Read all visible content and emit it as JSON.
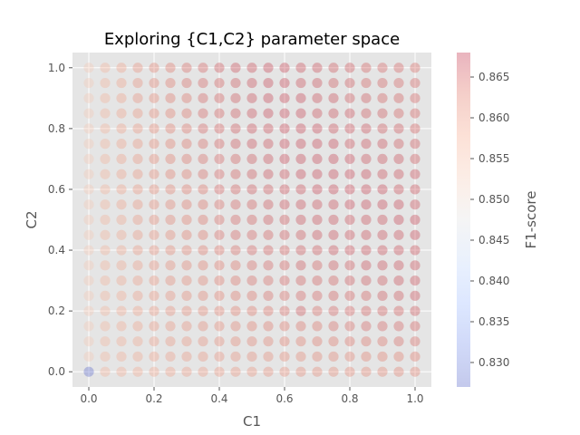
{
  "chart_data": {
    "type": "scatter",
    "title": "Exploring {C1,C2} parameter space",
    "xlabel": "C1",
    "ylabel": "C2",
    "xlim": [
      -0.05,
      1.05
    ],
    "ylim": [
      -0.05,
      1.05
    ],
    "x_ticks": [
      "0.0",
      "0.2",
      "0.4",
      "0.6",
      "0.8",
      "1.0"
    ],
    "y_ticks": [
      "0.0",
      "0.2",
      "0.4",
      "0.6",
      "0.8",
      "1.0"
    ],
    "grid": true,
    "colorbar": {
      "label": "F1-score",
      "range": [
        0.827,
        0.868
      ],
      "ticks": [
        "0.830",
        "0.835",
        "0.840",
        "0.845",
        "0.850",
        "0.855",
        "0.860",
        "0.865"
      ],
      "colormap": "coolwarm",
      "alpha": 0.3
    },
    "grid_values": {
      "c1": [
        0.0,
        0.05,
        0.1,
        0.15,
        0.2,
        0.25,
        0.3,
        0.35,
        0.4,
        0.45,
        0.5,
        0.55,
        0.6,
        0.65,
        0.7,
        0.75,
        0.8,
        0.85,
        0.9,
        0.95,
        1.0
      ],
      "c2": [
        0.0,
        0.05,
        0.1,
        0.15,
        0.2,
        0.25,
        0.3,
        0.35,
        0.4,
        0.45,
        0.5,
        0.55,
        0.6,
        0.65,
        0.7,
        0.75,
        0.8,
        0.85,
        0.9,
        0.95,
        1.0
      ]
    },
    "f1_score_rows_note": "rows indexed by C2 (0.0 to 1.0), columns by C1 (0.0 to 1.0)",
    "f1_score": [
      [
        0.8275,
        0.8565,
        0.857,
        0.8575,
        0.858,
        0.8585,
        0.859,
        0.859,
        0.8595,
        0.86,
        0.86,
        0.8605,
        0.8605,
        0.861,
        0.861,
        0.861,
        0.8615,
        0.8615,
        0.8615,
        0.862,
        0.862
      ],
      [
        0.853,
        0.856,
        0.857,
        0.858,
        0.8585,
        0.859,
        0.8595,
        0.86,
        0.8605,
        0.8605,
        0.861,
        0.861,
        0.8615,
        0.8615,
        0.862,
        0.862,
        0.862,
        0.8625,
        0.8625,
        0.8625,
        0.863
      ],
      [
        0.853,
        0.856,
        0.857,
        0.858,
        0.859,
        0.8595,
        0.86,
        0.8605,
        0.861,
        0.8615,
        0.862,
        0.862,
        0.8625,
        0.8625,
        0.863,
        0.863,
        0.8635,
        0.8635,
        0.8635,
        0.864,
        0.864
      ],
      [
        0.853,
        0.856,
        0.8575,
        0.8585,
        0.8595,
        0.86,
        0.8605,
        0.861,
        0.8615,
        0.862,
        0.8625,
        0.863,
        0.863,
        0.8635,
        0.8635,
        0.864,
        0.864,
        0.8645,
        0.8645,
        0.8645,
        0.865
      ],
      [
        0.853,
        0.856,
        0.8575,
        0.8585,
        0.8595,
        0.8605,
        0.861,
        0.8615,
        0.862,
        0.8625,
        0.863,
        0.8635,
        0.864,
        0.8655,
        0.864,
        0.8645,
        0.8645,
        0.865,
        0.865,
        0.865,
        0.8655
      ],
      [
        0.853,
        0.8565,
        0.8575,
        0.859,
        0.86,
        0.8605,
        0.8615,
        0.862,
        0.8625,
        0.863,
        0.8635,
        0.864,
        0.864,
        0.8645,
        0.8645,
        0.865,
        0.865,
        0.865,
        0.8655,
        0.8655,
        0.866
      ],
      [
        0.853,
        0.8565,
        0.858,
        0.859,
        0.86,
        0.861,
        0.8615,
        0.862,
        0.863,
        0.8635,
        0.864,
        0.864,
        0.8645,
        0.865,
        0.865,
        0.865,
        0.8655,
        0.8655,
        0.8655,
        0.866,
        0.866
      ],
      [
        0.853,
        0.8565,
        0.858,
        0.859,
        0.8605,
        0.861,
        0.862,
        0.8625,
        0.863,
        0.8635,
        0.864,
        0.8645,
        0.865,
        0.8655,
        0.865,
        0.8655,
        0.8655,
        0.866,
        0.866,
        0.866,
        0.866
      ],
      [
        0.853,
        0.8565,
        0.858,
        0.8595,
        0.8605,
        0.8615,
        0.862,
        0.863,
        0.8635,
        0.864,
        0.8645,
        0.865,
        0.865,
        0.8655,
        0.8655,
        0.866,
        0.866,
        0.866,
        0.866,
        0.866,
        0.866
      ],
      [
        0.853,
        0.8565,
        0.858,
        0.8595,
        0.8605,
        0.8615,
        0.8625,
        0.863,
        0.864,
        0.8645,
        0.8645,
        0.865,
        0.8655,
        0.8655,
        0.866,
        0.866,
        0.866,
        0.866,
        0.866,
        0.866,
        0.8665
      ],
      [
        0.853,
        0.8565,
        0.858,
        0.8595,
        0.861,
        0.862,
        0.8625,
        0.8635,
        0.864,
        0.8645,
        0.865,
        0.8655,
        0.8655,
        0.866,
        0.866,
        0.866,
        0.866,
        0.866,
        0.866,
        0.8665,
        0.8665
      ],
      [
        0.853,
        0.8565,
        0.8585,
        0.86,
        0.861,
        0.862,
        0.863,
        0.8635,
        0.864,
        0.8645,
        0.865,
        0.8655,
        0.866,
        0.866,
        0.866,
        0.866,
        0.8665,
        0.8665,
        0.8665,
        0.8665,
        0.866
      ],
      [
        0.853,
        0.8565,
        0.8585,
        0.86,
        0.861,
        0.862,
        0.863,
        0.8635,
        0.8645,
        0.865,
        0.8655,
        0.8655,
        0.866,
        0.866,
        0.8665,
        0.8665,
        0.8665,
        0.8665,
        0.8665,
        0.866,
        0.866
      ],
      [
        0.853,
        0.8565,
        0.8585,
        0.86,
        0.861,
        0.8625,
        0.863,
        0.864,
        0.8645,
        0.865,
        0.8655,
        0.866,
        0.866,
        0.8665,
        0.8665,
        0.8665,
        0.8665,
        0.8665,
        0.866,
        0.866,
        0.866
      ],
      [
        0.853,
        0.8565,
        0.8585,
        0.86,
        0.8615,
        0.8625,
        0.8635,
        0.864,
        0.8645,
        0.865,
        0.8655,
        0.866,
        0.8665,
        0.8665,
        0.8665,
        0.8665,
        0.8665,
        0.866,
        0.866,
        0.866,
        0.8655
      ],
      [
        0.853,
        0.8565,
        0.8585,
        0.86,
        0.8615,
        0.8625,
        0.8635,
        0.864,
        0.865,
        0.8655,
        0.866,
        0.866,
        0.8665,
        0.8665,
        0.8665,
        0.8665,
        0.866,
        0.866,
        0.866,
        0.8655,
        0.8655
      ],
      [
        0.853,
        0.8565,
        0.8585,
        0.86,
        0.8615,
        0.8625,
        0.8635,
        0.8645,
        0.865,
        0.8655,
        0.866,
        0.866,
        0.8665,
        0.8665,
        0.8665,
        0.866,
        0.866,
        0.866,
        0.8655,
        0.8655,
        0.865
      ],
      [
        0.853,
        0.8565,
        0.8585,
        0.86,
        0.8615,
        0.8625,
        0.8635,
        0.8645,
        0.865,
        0.8655,
        0.866,
        0.8665,
        0.8665,
        0.8665,
        0.866,
        0.866,
        0.866,
        0.8655,
        0.8655,
        0.865,
        0.865
      ],
      [
        0.853,
        0.8565,
        0.8585,
        0.8605,
        0.8615,
        0.863,
        0.8635,
        0.8645,
        0.865,
        0.8655,
        0.866,
        0.8665,
        0.8665,
        0.8665,
        0.866,
        0.866,
        0.8655,
        0.8655,
        0.865,
        0.865,
        0.8645
      ],
      [
        0.853,
        0.8565,
        0.8585,
        0.8605,
        0.862,
        0.863,
        0.864,
        0.8645,
        0.865,
        0.8655,
        0.866,
        0.8665,
        0.8665,
        0.866,
        0.866,
        0.8655,
        0.8655,
        0.865,
        0.865,
        0.8645,
        0.8645
      ],
      [
        0.853,
        0.8565,
        0.8585,
        0.8605,
        0.862,
        0.863,
        0.864,
        0.8645,
        0.8655,
        0.866,
        0.866,
        0.8665,
        0.8665,
        0.866,
        0.866,
        0.8655,
        0.8655,
        0.865,
        0.8645,
        0.8645,
        0.864
      ]
    ]
  }
}
